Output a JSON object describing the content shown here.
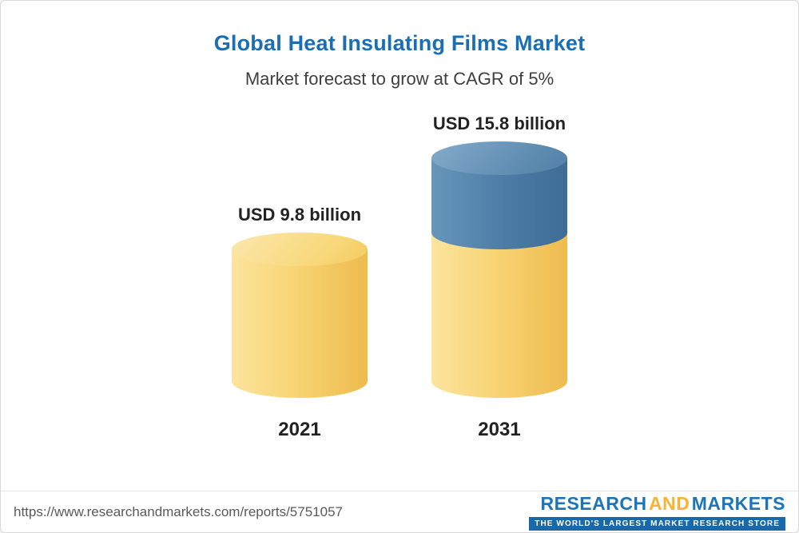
{
  "page": {
    "title": "Global Heat Insulating Films Market",
    "subtitle": "Market forecast to grow at CAGR of 5%"
  },
  "chart_data": {
    "type": "bar",
    "variant": "3d-cylinder",
    "categories": [
      "2021",
      "2031"
    ],
    "values": [
      9.8,
      15.8
    ],
    "value_labels": [
      "USD 9.8 billion",
      "USD 15.8 billion"
    ],
    "unit": "USD billion",
    "title": "Global Heat Insulating Films Market",
    "subtitle": "Market forecast to grow at CAGR of 5%",
    "cagr": "5%",
    "stacking_note": "2031 bar shows base value in yellow and incremental growth above 9.8 in blue",
    "legend_position": "none",
    "grid": false
  },
  "colors": {
    "title_blue": "#1a6fb4",
    "bar_yellow": "#f8d576",
    "bar_blue": "#4c7ca6",
    "label_dark": "#222222",
    "logo_blue": "#1b75bb",
    "logo_yellow": "#f9b233",
    "tagline_bg": "#1769a9"
  },
  "footer": {
    "url": "https://www.researchandmarkets.com/reports/5751057",
    "logo": {
      "word1": "RESEARCH",
      "word2": "AND",
      "word3": "MARKETS",
      "tagline": "THE WORLD'S LARGEST MARKET RESEARCH STORE"
    }
  }
}
